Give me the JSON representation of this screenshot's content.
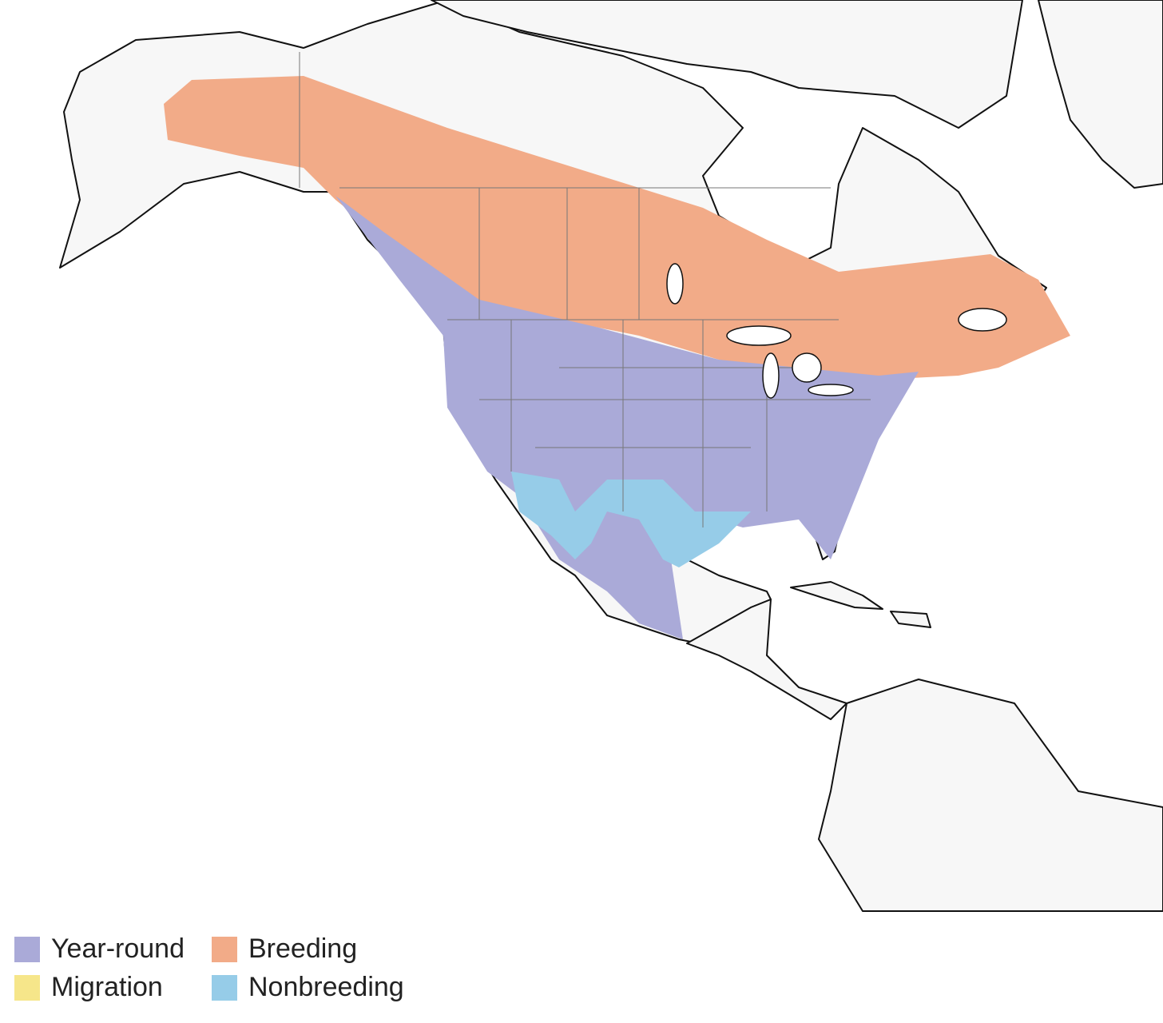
{
  "legend": {
    "items": [
      {
        "label": "Year-round",
        "color": "#aaaad8"
      },
      {
        "label": "Breeding",
        "color": "#f2ab88"
      },
      {
        "label": "Migration",
        "color": "#f6e68a"
      },
      {
        "label": "Nonbreeding",
        "color": "#96cce8"
      }
    ]
  }
}
